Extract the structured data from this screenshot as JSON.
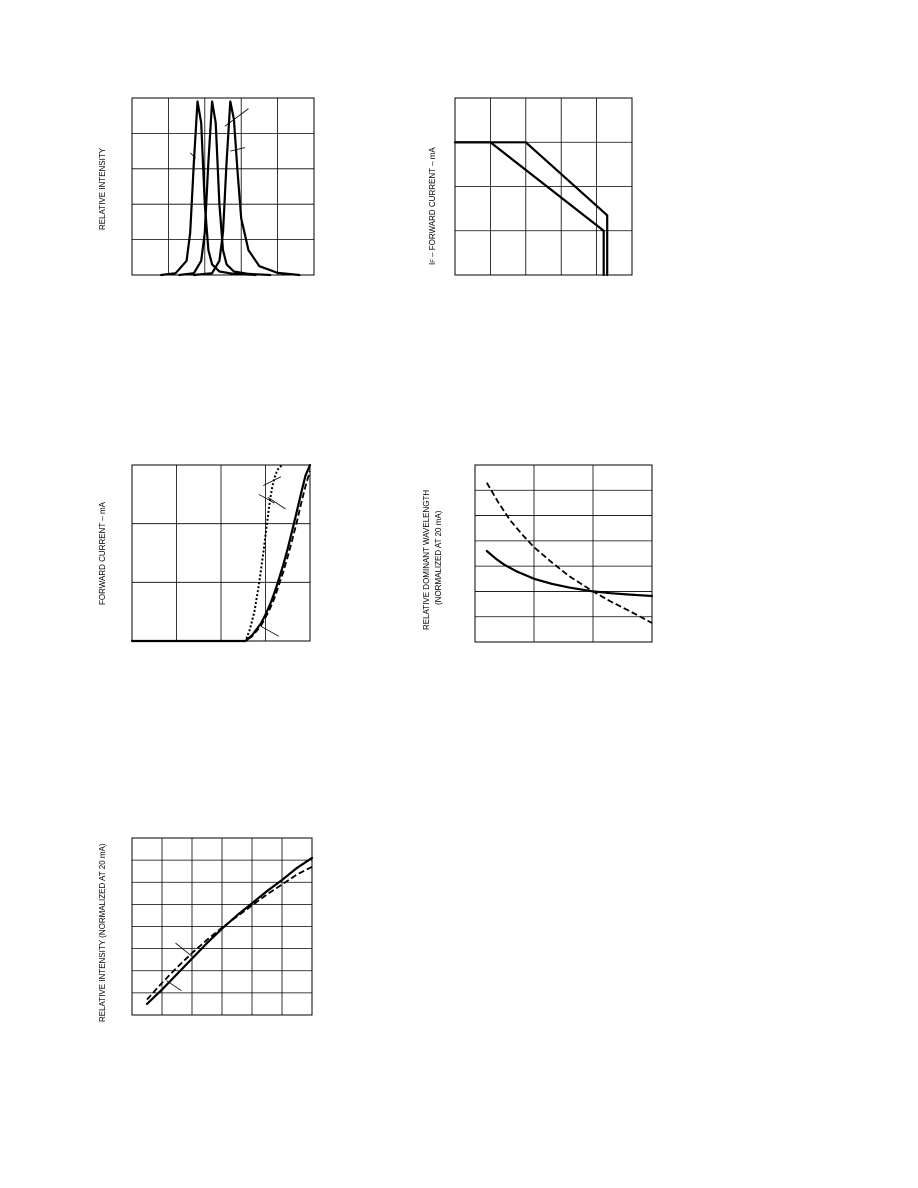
{
  "chart_data": [
    {
      "id": "spectra",
      "type": "line",
      "ylabel": "RELATIVE INTENSITY",
      "xlim": [
        0,
        5
      ],
      "ylim": [
        0,
        5
      ],
      "grid": true,
      "series": [
        {
          "x": [
            0.8,
            1.2,
            1.5,
            1.6,
            1.7,
            1.8,
            1.9,
            2.0,
            2.1,
            2.2,
            2.4,
            2.8,
            3.4
          ],
          "values": [
            0.0,
            0.05,
            0.4,
            1.2,
            3.2,
            4.9,
            4.3,
            2.0,
            0.7,
            0.3,
            0.1,
            0.03,
            0.0
          ]
        },
        {
          "x": [
            1.3,
            1.7,
            1.9,
            2.0,
            2.1,
            2.2,
            2.3,
            2.4,
            2.5,
            2.6,
            2.8,
            3.2,
            3.8
          ],
          "values": [
            0.0,
            0.05,
            0.4,
            1.2,
            3.2,
            4.9,
            4.3,
            2.0,
            0.7,
            0.3,
            0.1,
            0.03,
            0.0
          ]
        },
        {
          "x": [
            1.7,
            2.2,
            2.4,
            2.5,
            2.6,
            2.7,
            2.8,
            2.9,
            3.0,
            3.2,
            3.5,
            4.0,
            4.6
          ],
          "values": [
            0.0,
            0.05,
            0.4,
            1.2,
            3.2,
            4.9,
            4.4,
            2.9,
            1.6,
            0.7,
            0.25,
            0.06,
            0.0
          ]
        }
      ],
      "leaders": [
        [
          [
            2.55,
            4.2
          ],
          [
            3.2,
            4.7
          ]
        ],
        [
          [
            2.7,
            3.5
          ],
          [
            3.1,
            3.6
          ]
        ],
        [
          [
            1.75,
            3.3
          ],
          [
            1.6,
            3.45
          ]
        ]
      ]
    },
    {
      "id": "derating",
      "type": "line",
      "ylabel": "IF – FORWARD CURRENT – mA",
      "ylabel_main": "I",
      "ylabel_sub": "F",
      "ylabel_rest": " – FORWARD CURRENT – mA",
      "xlim": [
        0,
        5
      ],
      "ylim": [
        0,
        4
      ],
      "grid": true,
      "series": [
        {
          "x": [
            0,
            1.0,
            4.2,
            4.2
          ],
          "values": [
            3.0,
            3.0,
            1.0,
            0.0
          ]
        },
        {
          "x": [
            0,
            2.0,
            4.3,
            4.3
          ],
          "values": [
            3.0,
            3.0,
            1.35,
            0.0
          ]
        }
      ]
    },
    {
      "id": "iv",
      "type": "line",
      "ylabel": "FORWARD CURRENT – mA",
      "xlim": [
        0,
        4
      ],
      "ylim": [
        0,
        3
      ],
      "grid": true,
      "series": [
        {
          "x": [
            0,
            2.55,
            2.7,
            2.9,
            3.0,
            3.1,
            3.2,
            3.3,
            3.4,
            3.5,
            3.6,
            3.7,
            3.8,
            3.9,
            4.0
          ],
          "values": [
            0,
            0,
            0.1,
            0.3,
            0.45,
            0.62,
            0.82,
            1.05,
            1.3,
            1.58,
            1.88,
            2.2,
            2.52,
            2.82,
            3.0
          ],
          "style": "solid"
        },
        {
          "x": [
            0,
            2.55,
            2.7,
            2.9,
            3.0,
            3.1,
            3.2,
            3.3,
            3.4,
            3.5,
            3.6,
            3.7,
            3.8,
            3.9,
            4.0
          ],
          "values": [
            0,
            0,
            0.08,
            0.26,
            0.4,
            0.55,
            0.73,
            0.95,
            1.18,
            1.44,
            1.72,
            2.02,
            2.34,
            2.64,
            2.9
          ],
          "style": "dashed"
        },
        {
          "x": [
            0,
            2.55,
            2.65,
            2.75,
            2.85,
            2.95,
            3.05,
            3.1,
            3.15,
            3.2,
            3.25,
            3.3,
            3.38
          ],
          "values": [
            0,
            0,
            0.2,
            0.5,
            0.95,
            1.5,
            2.1,
            2.4,
            2.62,
            2.78,
            2.88,
            2.95,
            3.0
          ],
          "style": "dotted"
        }
      ],
      "leaders": [
        [
          [
            3.35,
            2.8
          ],
          [
            2.95,
            2.65
          ]
        ],
        [
          [
            3.2,
            2.35
          ],
          [
            2.85,
            2.5
          ]
        ],
        [
          [
            3.45,
            2.25
          ],
          [
            3.05,
            2.45
          ]
        ],
        [
          [
            2.9,
            0.25
          ],
          [
            3.3,
            0.08
          ]
        ]
      ]
    },
    {
      "id": "wavelength",
      "type": "line",
      "ylabel": "RELATIVE DOMINANT WAVELENGTH",
      "ylabel_line2": "(NORMALIZED AT 20 mA)",
      "xlim": [
        0,
        3
      ],
      "ylim": [
        0,
        7
      ],
      "grid": true,
      "series": [
        {
          "x": [
            0.2,
            0.35,
            0.5,
            0.7,
            1.0,
            1.3,
            1.6,
            2.0,
            2.3,
            2.6,
            3.0
          ],
          "values": [
            3.6,
            3.3,
            3.05,
            2.8,
            2.5,
            2.3,
            2.15,
            2.0,
            1.93,
            1.88,
            1.82
          ],
          "style": "solid"
        },
        {
          "x": [
            0.2,
            0.4,
            0.6,
            0.8,
            1.0,
            1.3,
            1.6,
            2.0,
            2.3,
            2.6,
            3.0
          ],
          "values": [
            6.3,
            5.5,
            4.8,
            4.25,
            3.75,
            3.15,
            2.6,
            2.0,
            1.6,
            1.25,
            0.75
          ],
          "style": "dashed"
        }
      ]
    },
    {
      "id": "intensity",
      "type": "line",
      "ylabel": "RELATIVE INTENSITY (NORMALIZED AT 20 mA)",
      "xlim": [
        0,
        6
      ],
      "ylim": [
        0,
        8
      ],
      "grid": true,
      "series": [
        {
          "x": [
            0.5,
            1.0,
            1.5,
            2.0,
            2.5,
            3.0,
            3.5,
            4.0,
            4.5,
            5.0,
            5.5,
            6.0
          ],
          "values": [
            0.5,
            1.15,
            1.85,
            2.55,
            3.25,
            3.9,
            4.5,
            5.05,
            5.6,
            6.1,
            6.65,
            7.1
          ],
          "style": "solid"
        },
        {
          "x": [
            0.5,
            1.0,
            1.5,
            2.0,
            2.5,
            3.0,
            3.5,
            4.0,
            4.5,
            5.0,
            5.5,
            6.0
          ],
          "values": [
            0.7,
            1.45,
            2.15,
            2.8,
            3.4,
            3.95,
            4.45,
            4.95,
            5.45,
            5.9,
            6.35,
            6.7
          ],
          "style": "dashed"
        }
      ],
      "leaders": [
        [
          [
            1.45,
            3.25
          ],
          [
            2.0,
            2.65
          ]
        ],
        [
          [
            1.15,
            1.55
          ],
          [
            1.65,
            1.1
          ]
        ]
      ]
    }
  ]
}
